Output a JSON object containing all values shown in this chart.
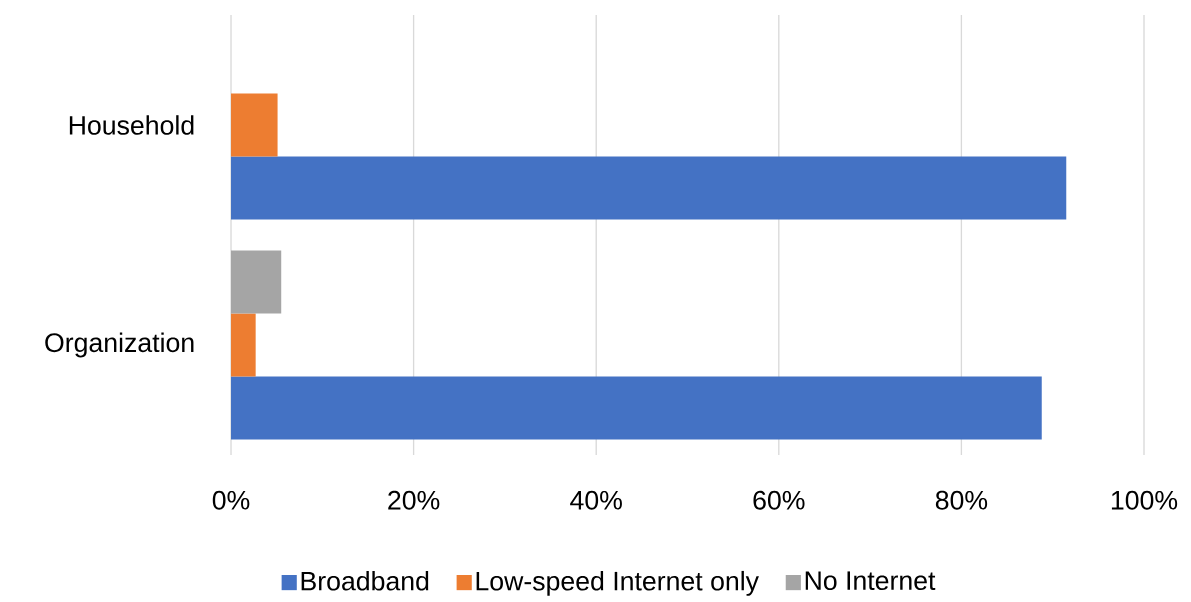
{
  "chart_data": {
    "type": "bar",
    "orientation": "horizontal",
    "categories": [
      "Household",
      "Organization"
    ],
    "series": [
      {
        "name": "Broadband",
        "color": "#4472c4",
        "values": [
          91.5,
          88.8
        ]
      },
      {
        "name": "Low-speed Internet only",
        "color": "#ed7d31",
        "values": [
          5.1,
          2.7
        ]
      },
      {
        "name": "No Internet",
        "color": "#a5a5a5",
        "values": [
          0,
          5.5
        ]
      }
    ],
    "xlim": [
      0,
      100
    ],
    "xticks": [
      {
        "value": 0,
        "label": "0%"
      },
      {
        "value": 20,
        "label": "20%"
      },
      {
        "value": 40,
        "label": "40%"
      },
      {
        "value": 60,
        "label": "60%"
      },
      {
        "value": 80,
        "label": "80%"
      },
      {
        "value": 100,
        "label": "100%"
      }
    ],
    "grid": "x",
    "legend": "bottom"
  }
}
